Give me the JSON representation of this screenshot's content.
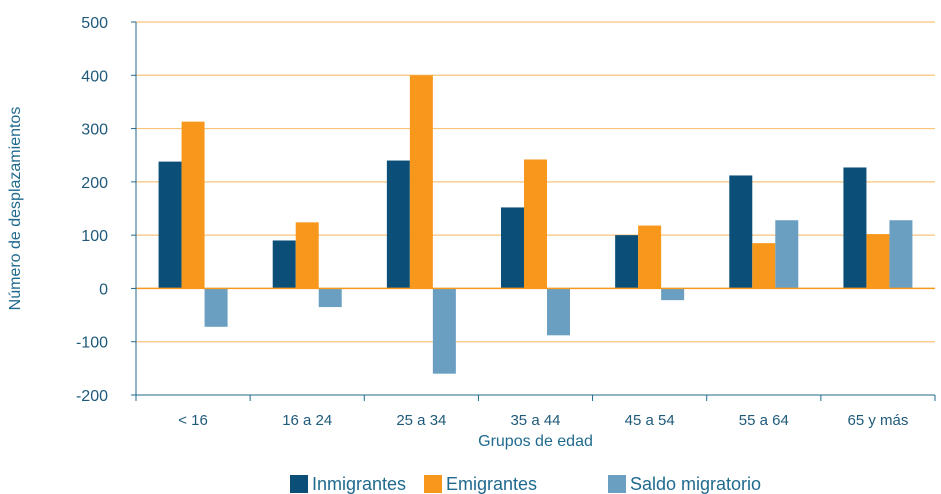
{
  "chart_data": {
    "type": "bar",
    "title": "",
    "xlabel": "Grupos de edad",
    "ylabel": "Número de desplazamientos",
    "ylim": [
      -200,
      500
    ],
    "yticks": [
      500,
      400,
      300,
      200,
      100,
      0,
      -100,
      -200
    ],
    "grid": "horizontal",
    "legend_position": "bottom",
    "categories": [
      "< 16",
      "16 a 24",
      "25 a 34",
      "35 a 44",
      "45 a 54",
      "55 a 64",
      "65 y más"
    ],
    "series": [
      {
        "name": "Inmigrantes",
        "color": "#0b4f78",
        "values": [
          238,
          90,
          240,
          152,
          100,
          212,
          227
        ]
      },
      {
        "name": "Emigrantes",
        "color": "#f7981d",
        "values": [
          313,
          124,
          400,
          242,
          118,
          85,
          102
        ]
      },
      {
        "name": "Saldo migratorio",
        "color": "#6a9fc2",
        "values": [
          -72,
          -35,
          -160,
          -88,
          -22,
          128,
          128
        ]
      }
    ],
    "colors": {
      "gridline": "#f9c47a",
      "zero_line": "#f7981d",
      "axis": "#1f6a8e",
      "text": "#1f6a8e"
    }
  }
}
